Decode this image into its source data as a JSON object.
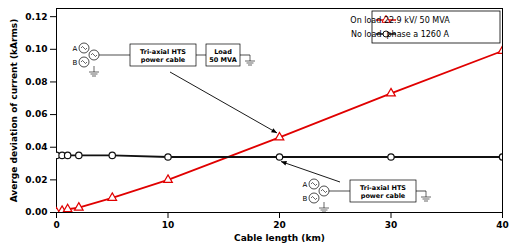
{
  "chart_data": {
    "type": "line",
    "x_label": "Cable length (km)",
    "y_label": "Averge deviation of current (kArms)",
    "xlim": [
      0,
      40
    ],
    "xticks": [
      0,
      10,
      20,
      30,
      40
    ],
    "ylim": [
      0,
      0.125
    ],
    "yticks": [
      {
        "value": 0,
        "label": "0.00"
      },
      {
        "value": 0.02,
        "label": "0.02"
      },
      {
        "value": 0.04,
        "label": "0.04"
      },
      {
        "value": 0.06,
        "label": "0.06"
      },
      {
        "value": 0.08,
        "label": "0.08"
      },
      {
        "value": 0.1,
        "label": "0.10"
      },
      {
        "value": 0.12,
        "label": "0.12"
      }
    ],
    "grid": false,
    "legend": "upper right",
    "x": [
      0,
      0.5,
      1,
      2,
      5,
      10,
      20,
      30,
      40
    ],
    "series": [
      {
        "name": "On load 22.9 kV/ 50 MVA",
        "color": "#e00000",
        "marker": "triangle",
        "line_style": "solid",
        "values": [
          0.0,
          0.001,
          0.002,
          0.003,
          0.009,
          0.02,
          0.046,
          0.073,
          0.099
        ]
      },
      {
        "name": "No load  phase a 1260 A",
        "color": "#111111",
        "marker": "circle",
        "line_style": "solid",
        "values": [
          0.035,
          0.035,
          0.035,
          0.035,
          0.035,
          0.034,
          0.034,
          0.034,
          0.034
        ]
      }
    ],
    "annotations": [
      {
        "texts": [
          "A",
          "B",
          "Tri-axial HTS power cable",
          "Load 50 MVA"
        ],
        "x": 20,
        "y": 0.046
      },
      {
        "texts": [
          "A",
          "B",
          "Tri-axial HTS power cable"
        ],
        "x": 20,
        "y": 0.034
      }
    ]
  }
}
